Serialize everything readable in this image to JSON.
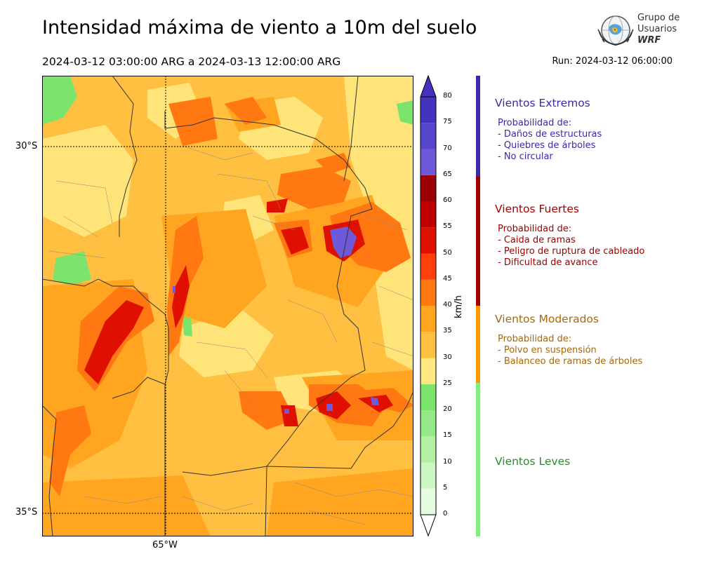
{
  "header": {
    "title": "Intensidad máxima de viento a 10m del suelo",
    "period": "2024-03-12 03:00:00 ARG  a  2024-03-13 12:00:00 ARG",
    "run": "Run: 2024-03-12 06:00:00"
  },
  "logo": {
    "line1": "Grupo de",
    "line2": "Usuarios",
    "line3": "WRF"
  },
  "axes": {
    "lat_top": "30°S",
    "lat_bottom": "35°S",
    "lon": "65°W"
  },
  "colorbar": {
    "unit": "km/h",
    "levels": [
      0,
      5,
      10,
      15,
      20,
      25,
      30,
      35,
      40,
      45,
      50,
      55,
      60,
      65,
      70,
      75,
      80
    ],
    "colors": [
      "#e5fce0",
      "#ccf7c2",
      "#b2f0a4",
      "#95ea87",
      "#7ce46d",
      "#ffe880",
      "#ffbf40",
      "#ffa51f",
      "#ff7812",
      "#ff400a",
      "#e01000",
      "#c00000",
      "#9c0000",
      "#6e5ad8",
      "#5646cf",
      "#4433bf"
    ],
    "tick_labels": [
      "0",
      "5",
      "10",
      "15",
      "20",
      "25",
      "30",
      "35",
      "40",
      "45",
      "50",
      "55",
      "60",
      "65",
      "70",
      "75",
      "80"
    ]
  },
  "categories": [
    {
      "title": "Vientos Extremos",
      "color": "#3a2aa9",
      "header": "Probabilidad de:",
      "lines": [
        "- Daños de estructuras",
        "- Quiebres de árboles",
        "- No circular"
      ]
    },
    {
      "title": "Vientos Fuertes",
      "color": "#a10000",
      "header": "Probabilidad de:",
      "lines": [
        "- Caida de ramas",
        "- Peligro de ruptura de cableado",
        "- Dificultad de avance"
      ]
    },
    {
      "title": "Vientos Moderados",
      "color": "#a8680c",
      "header": "Probabilidad de:",
      "lines": [
        "- Polvo en suspensión",
        "- Balanceo de ramas de árboles"
      ]
    },
    {
      "title": "Vientos Leves",
      "color": "#2e8b2e",
      "header": "",
      "lines": []
    }
  ],
  "category_bar_colors": [
    "#3a2aa9",
    "#a10000",
    "#ff9900",
    "#7ef07e"
  ]
}
